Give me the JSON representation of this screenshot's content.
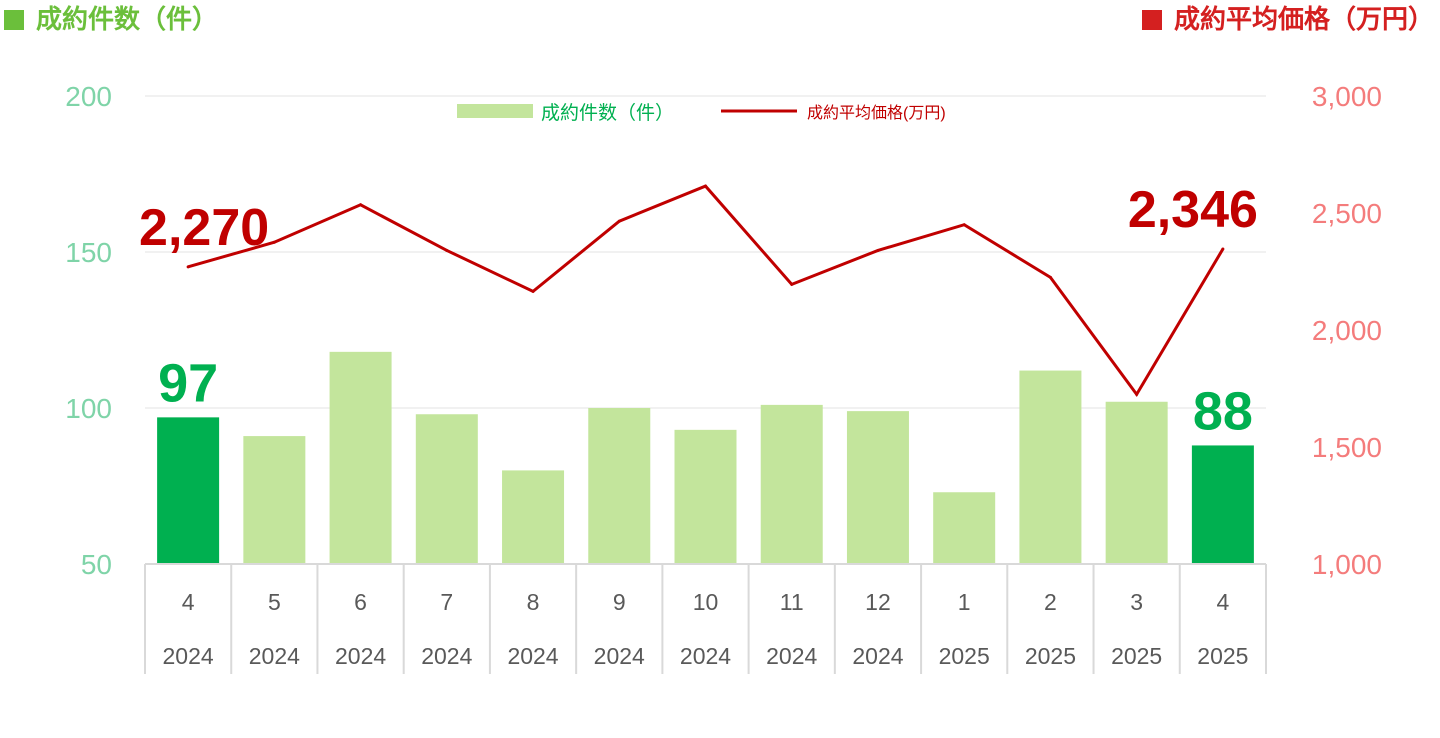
{
  "header_left": "成約件数（件）",
  "header_right": "成約平均価格（万円）",
  "colors": {
    "bar": "#c3e59c",
    "bar_highlight": "#00b050",
    "line": "#c00000",
    "left_axis_text": "#7fd4a8",
    "right_axis_text": "#f47c7c",
    "header_left": "#6bbf3b",
    "header_right": "#d42020"
  },
  "chart_data": {
    "type": "bar",
    "categories": [
      "4",
      "5",
      "6",
      "7",
      "8",
      "9",
      "10",
      "11",
      "12",
      "1",
      "2",
      "3",
      "4"
    ],
    "category_years": [
      "2024",
      "2024",
      "2024",
      "2024",
      "2024",
      "2024",
      "2024",
      "2024",
      "2024",
      "2025",
      "2025",
      "2025",
      "2025"
    ],
    "series": [
      {
        "name": "成約件数（件）",
        "type": "bar",
        "axis": "left",
        "values": [
          97,
          91,
          118,
          98,
          80,
          100,
          93,
          101,
          99,
          73,
          112,
          102,
          88
        ]
      },
      {
        "name": "成約平均価格(万円)",
        "type": "line",
        "axis": "right",
        "values": [
          2270,
          2375,
          2535,
          2340,
          2165,
          2465,
          2615,
          2195,
          2340,
          2450,
          2225,
          1725,
          2346
        ]
      }
    ],
    "highlight_indices": [
      0,
      12
    ],
    "data_labels": [
      {
        "series": 0,
        "index": 0,
        "text": "97"
      },
      {
        "series": 0,
        "index": 12,
        "text": "88"
      },
      {
        "series": 1,
        "index": 0,
        "text": "2,270"
      },
      {
        "series": 1,
        "index": 12,
        "text": "2,346"
      }
    ],
    "y_left": {
      "min": 50,
      "max": 200,
      "ticks": [
        "50",
        "100",
        "150",
        "200"
      ]
    },
    "y_right": {
      "min": 1000,
      "max": 3000,
      "ticks": [
        "1,000",
        "1,500",
        "2,000",
        "2,500",
        "3,000"
      ]
    },
    "legend_position": "top-center",
    "grid": true
  }
}
